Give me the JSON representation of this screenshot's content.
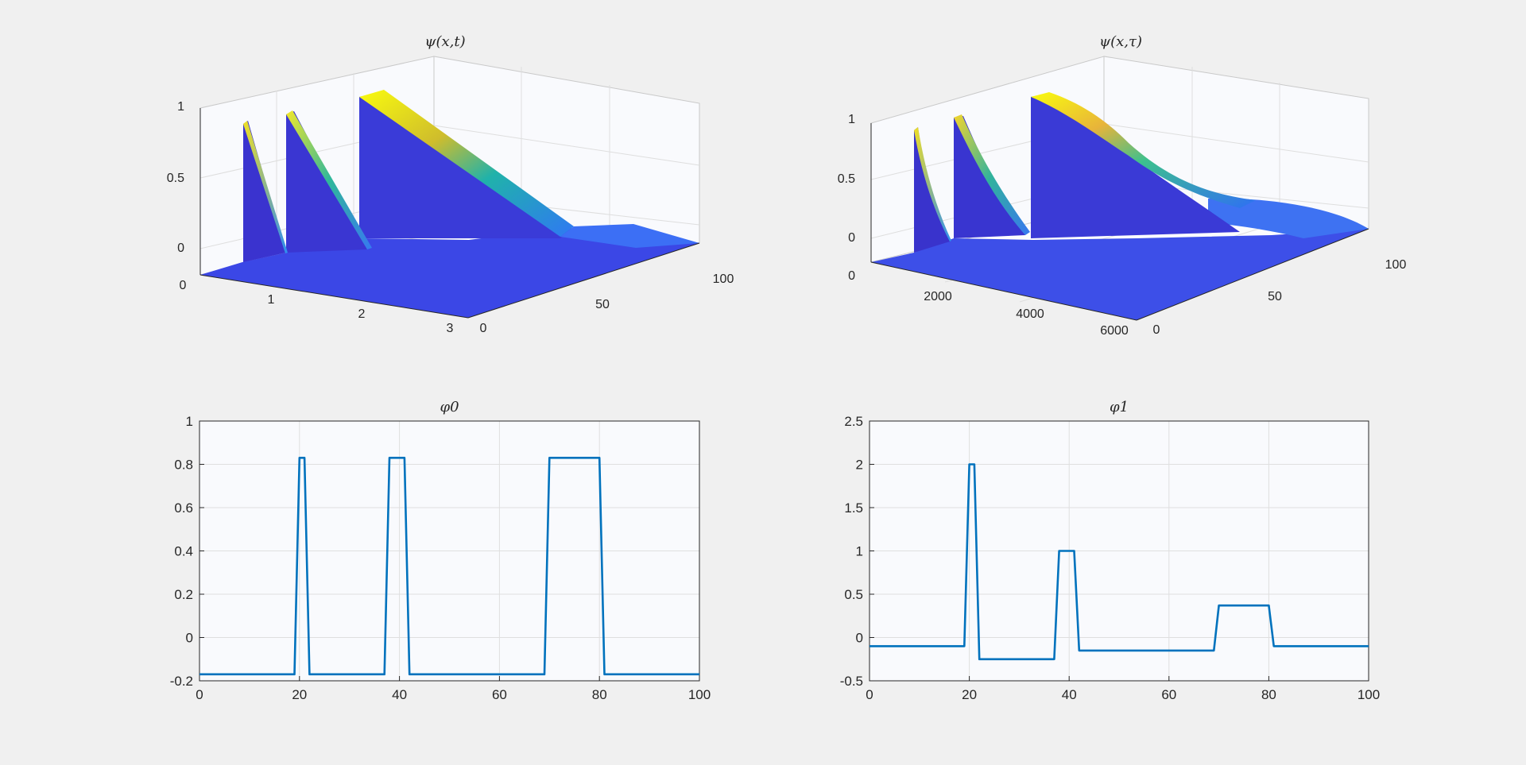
{
  "chart_data": [
    {
      "type": "surface3d",
      "title": "ψ(x,t)",
      "colormap": "parula",
      "z_ticks": [
        "0",
        "0.5",
        "1"
      ],
      "time_ticks": [
        "0",
        "1",
        "2",
        "3"
      ],
      "x_ticks": [
        "0",
        "50",
        "100"
      ],
      "time_range": [
        0,
        3
      ],
      "x_range": [
        0,
        100
      ],
      "z_range": [
        -0.17,
        1
      ],
      "grid": true
    },
    {
      "type": "surface3d",
      "title": "ψ(x,τ)",
      "colormap": "parula",
      "z_ticks": [
        "0",
        "0.5",
        "1"
      ],
      "time_ticks": [
        "0",
        "2000",
        "4000",
        "6000"
      ],
      "x_ticks": [
        "0",
        "50",
        "100"
      ],
      "time_range": [
        0,
        6000
      ],
      "x_range": [
        0,
        100
      ],
      "z_range": [
        -0.13,
        1.05
      ],
      "grid": true
    },
    {
      "type": "line",
      "title": "φ0",
      "xlim": [
        0,
        100
      ],
      "ylim": [
        -0.2,
        1
      ],
      "x_ticks": [
        "0",
        "20",
        "40",
        "60",
        "80",
        "100"
      ],
      "y_ticks": [
        "-0.2",
        "0",
        "0.2",
        "0.4",
        "0.6",
        "0.8",
        "1"
      ],
      "grid": true,
      "color": "#0072BD",
      "series": [
        {
          "x": [
            0,
            19,
            20,
            21,
            22,
            37,
            38,
            41,
            42,
            69,
            70,
            80,
            81,
            100
          ],
          "y": [
            -0.17,
            -0.17,
            0.83,
            0.83,
            -0.17,
            -0.17,
            0.83,
            0.83,
            -0.17,
            -0.17,
            0.83,
            0.83,
            -0.17,
            -0.17
          ]
        }
      ]
    },
    {
      "type": "line",
      "title": "φ1",
      "xlim": [
        0,
        100
      ],
      "ylim": [
        -0.5,
        2.5
      ],
      "x_ticks": [
        "0",
        "20",
        "40",
        "60",
        "80",
        "100"
      ],
      "y_ticks": [
        "-0.5",
        "0",
        "0.5",
        "1",
        "1.5",
        "2",
        "2.5"
      ],
      "grid": true,
      "color": "#0072BD",
      "series": [
        {
          "x": [
            0,
            19,
            20,
            21,
            22,
            37,
            38,
            41,
            42,
            69,
            70,
            80,
            81,
            100
          ],
          "y": [
            -0.1,
            -0.1,
            2.0,
            2.0,
            -0.25,
            -0.25,
            1.0,
            1.0,
            -0.15,
            -0.15,
            0.37,
            0.37,
            -0.1,
            -0.1
          ]
        }
      ]
    }
  ]
}
